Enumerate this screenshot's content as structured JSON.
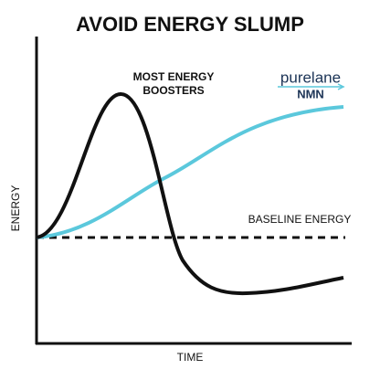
{
  "title": "AVOID ENERGY SLUMP",
  "annotations": {
    "boosters": [
      "MOST ENERGY",
      "BOOSTERS"
    ],
    "baseline": "BASELINE ENERGY"
  },
  "axes": {
    "y_label": "ENERGY",
    "x_label": "TIME"
  },
  "brand": {
    "name": "purelane",
    "product": "NMN"
  }
}
